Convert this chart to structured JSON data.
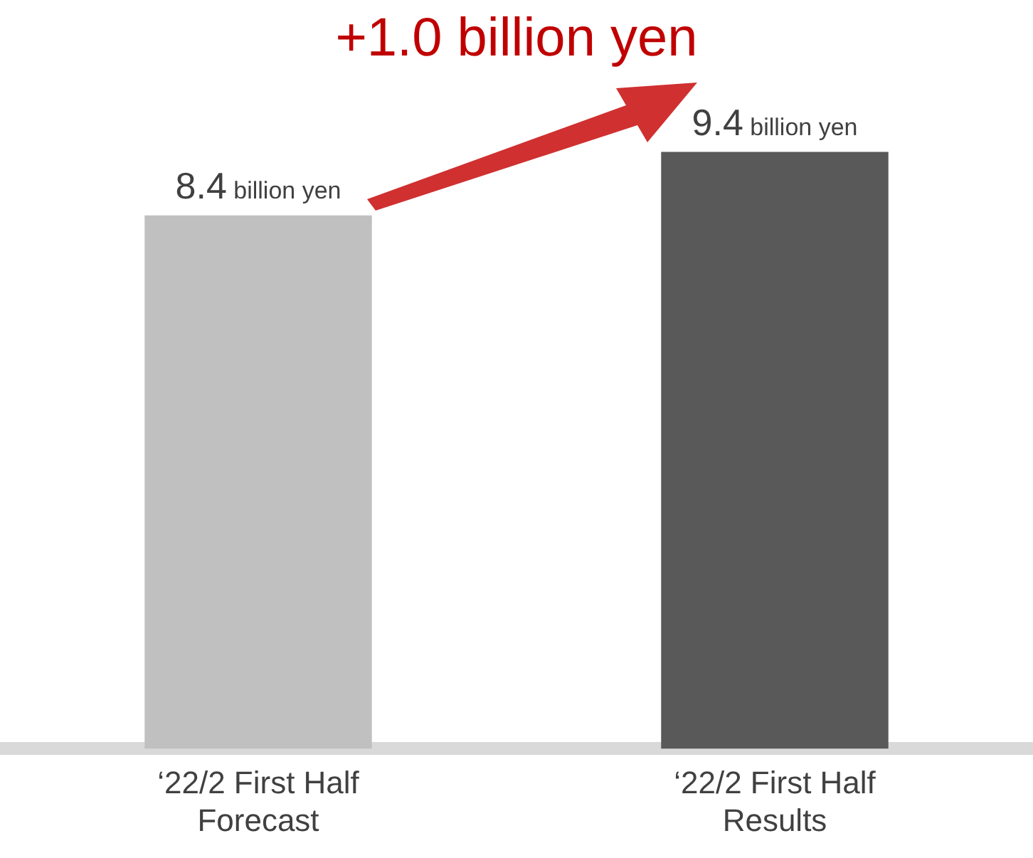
{
  "chart_data": {
    "type": "bar",
    "categories": [
      "‘22/2 First Half Forecast",
      "‘22/2 First Half Results"
    ],
    "values": [
      8.4,
      9.4
    ],
    "colors": [
      "#c0c0c0",
      "#595959"
    ],
    "value_labels": [
      "8.4 billion yen",
      "9.4 billion yen"
    ],
    "grid": false,
    "legend": false,
    "annotations": [
      "+1.0 billion yen"
    ]
  }
}
